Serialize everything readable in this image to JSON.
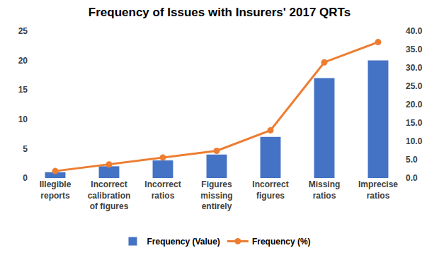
{
  "chart_data": {
    "type": "bar",
    "title": "Frequency of Issues with Insurers' 2017 QRTs",
    "categories": [
      "Illegible reports",
      "Incorrect calibration of figures",
      "Incorrect ratios",
      "Figures missing entirely",
      "Incorrect figures",
      "Missing ratios",
      "Imprecise ratios"
    ],
    "series": [
      {
        "name": "Frequency (Value)",
        "type": "bar",
        "color": "#4472c4",
        "values": [
          1,
          2,
          3,
          4,
          7,
          17,
          20
        ]
      },
      {
        "name": "Frequency (%)",
        "type": "line",
        "color": "#ed7d31",
        "marker": "circle",
        "axis": "y2",
        "values": [
          1.9,
          3.7,
          5.6,
          7.4,
          13.0,
          31.5,
          37.0
        ]
      }
    ],
    "ylim": [
      0,
      25
    ],
    "yticks": [
      0,
      5,
      10,
      15,
      20,
      25
    ],
    "y2lim": [
      0,
      40
    ],
    "y2ticks": [
      {
        "value": 0,
        "label": "0.0"
      },
      {
        "value": 5,
        "label": "5.0"
      },
      {
        "value": 10,
        "label": "10.0"
      },
      {
        "value": 15,
        "label": "15.0"
      },
      {
        "value": 20,
        "label": "20.0"
      },
      {
        "value": 25,
        "label": "25.0"
      },
      {
        "value": 30,
        "label": "30.0"
      },
      {
        "value": 35,
        "label": "35.0"
      },
      {
        "value": 40,
        "label": "40.0"
      }
    ],
    "grid": false,
    "legend": "bottom"
  }
}
